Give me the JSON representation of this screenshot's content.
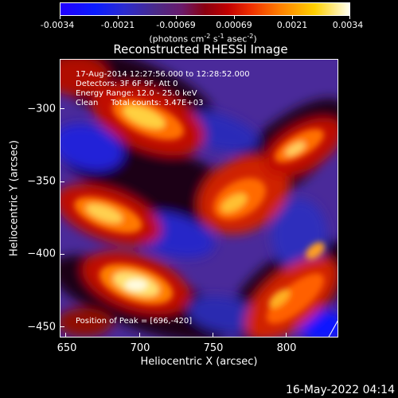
{
  "colorbar": {
    "tick_labels": [
      "-0.0034",
      "-0.0021",
      "-0.00069",
      "0.00069",
      "0.0021",
      "0.0034"
    ],
    "units_prefix": "(photons cm",
    "units_exp1": "-2",
    "units_mid1": " s",
    "units_exp2": "-1",
    "units_mid2": " asec",
    "units_exp3": "-2",
    "units_suffix": ")"
  },
  "title": "Reconstructed RHESSI Image",
  "info": {
    "line1": "17-Aug-2014 12:27:56.000 to 12:28:52.000",
    "line2": "Detectors: 3F 6F 9F, Att 0",
    "line3": "Energy Range: 12.0 - 25.0 keV",
    "line4": "Clean     Total counts: 3.47E+03",
    "peak": "Position of Peak = [696,-420]"
  },
  "axes": {
    "xlabel": "Heliocentric X (arcsec)",
    "ylabel": "Heliocentric Y (arcsec)",
    "x_ticks": [
      "650",
      "700",
      "750",
      "800"
    ],
    "y_ticks": [
      "−300",
      "−350",
      "−400",
      "−450"
    ],
    "x_range": [
      646,
      836
    ],
    "y_range": [
      -457,
      -270
    ]
  },
  "footer": {
    "date": "16-May-2022 04:14"
  },
  "colors": {
    "background": "#000000",
    "foreground": "#ffffff"
  }
}
